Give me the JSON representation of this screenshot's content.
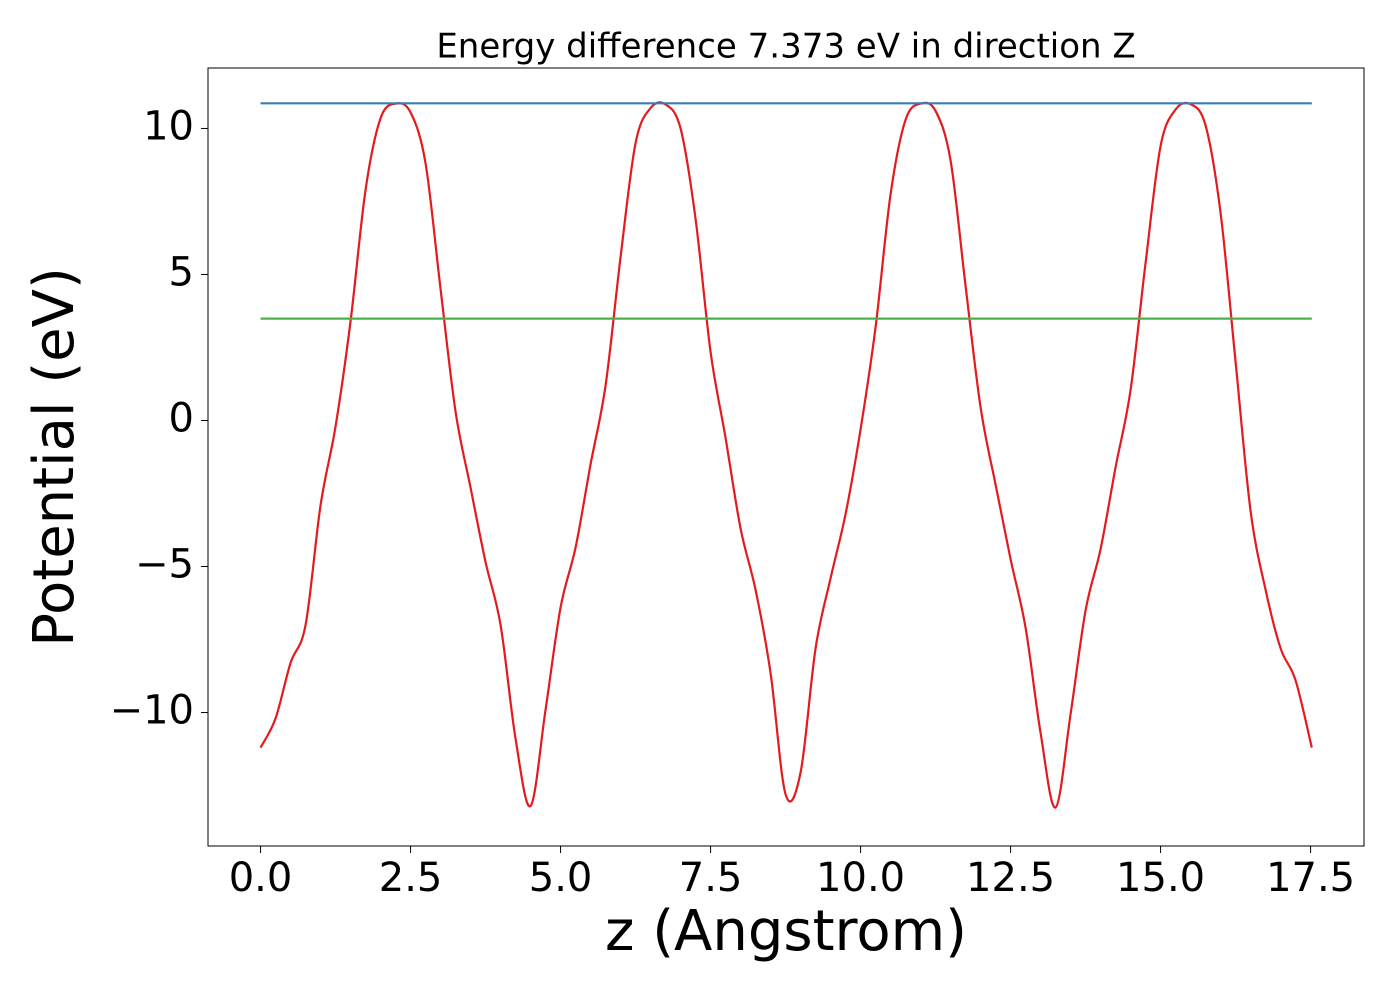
{
  "chart_data": {
    "type": "line",
    "title": "Energy difference 7.373 eV in direction Z",
    "xlabel": "z (Angstrom)",
    "ylabel": "Potential (eV)",
    "xlim": [
      -0.876,
      18.39
    ],
    "ylim": [
      -14.57,
      12.07
    ],
    "xticks": [
      {
        "value": 0,
        "label": "0.0"
      },
      2.5,
      {
        "value": 5,
        "label": "5.0"
      },
      7.5,
      {
        "value": 10,
        "label": "10.0"
      },
      12.5,
      {
        "value": 15,
        "label": "15.0"
      },
      17.5
    ],
    "yticks": [
      {
        "value": -10,
        "label": "−10"
      },
      {
        "value": -5,
        "label": "−5"
      },
      0,
      5,
      10
    ],
    "series": [
      {
        "color": "#e41a1c",
        "x": [
          0,
          0.25,
          0.5,
          0.75,
          1,
          1.25,
          1.5,
          1.75,
          2,
          2.25,
          2.5,
          2.75,
          3,
          3.25,
          3.5,
          3.75,
          4,
          4.25,
          4.5,
          4.75,
          5,
          5.25,
          5.5,
          5.75,
          6,
          6.25,
          6.5,
          6.75,
          7,
          7.25,
          7.5,
          7.75,
          8,
          8.25,
          8.5,
          8.75,
          9,
          9.25,
          9.5,
          9.75,
          10,
          10.25,
          10.5,
          10.75,
          11,
          11.25,
          11.5,
          11.75,
          12,
          12.25,
          12.5,
          12.75,
          13,
          13.25,
          13.5,
          13.75,
          14,
          14.25,
          14.5,
          14.75,
          15,
          15.25,
          15.5,
          15.75,
          16,
          16.25,
          16.5,
          16.75,
          17,
          17.25,
          17.52
        ],
        "values": [
          -11.2,
          -10.2,
          -8.3,
          -7.0,
          -2.9,
          -0.2,
          3.4,
          7.9,
          10.35,
          10.85,
          10.55,
          8.8,
          4.5,
          0.3,
          -2.3,
          -4.85,
          -7.0,
          -10.9,
          -13.2,
          -9.9,
          -6.4,
          -4.35,
          -1.5,
          1.2,
          5.6,
          9.5,
          10.7,
          10.82,
          10.0,
          6.9,
          2.35,
          -0.6,
          -3.7,
          -5.8,
          -8.65,
          -12.8,
          -12.05,
          -7.8,
          -5.4,
          -3.2,
          -0.3,
          3.2,
          7.75,
          10.3,
          10.85,
          10.6,
          8.9,
          4.6,
          0.45,
          -2.2,
          -4.75,
          -7.1,
          -10.7,
          -13.25,
          -10.05,
          -6.5,
          -4.4,
          -1.6,
          1.05,
          5.4,
          9.4,
          10.65,
          10.83,
          10.1,
          7.1,
          2.0,
          -3.1,
          -5.8,
          -7.8,
          -8.9,
          -11.2
        ]
      },
      {
        "color": "#377eb8",
        "x": [
          0,
          17.52
        ],
        "values": [
          10.86,
          10.86
        ]
      },
      {
        "color": "#4daf4a",
        "x": [
          0,
          17.52
        ],
        "values": [
          3.487,
          3.487
        ]
      }
    ]
  }
}
